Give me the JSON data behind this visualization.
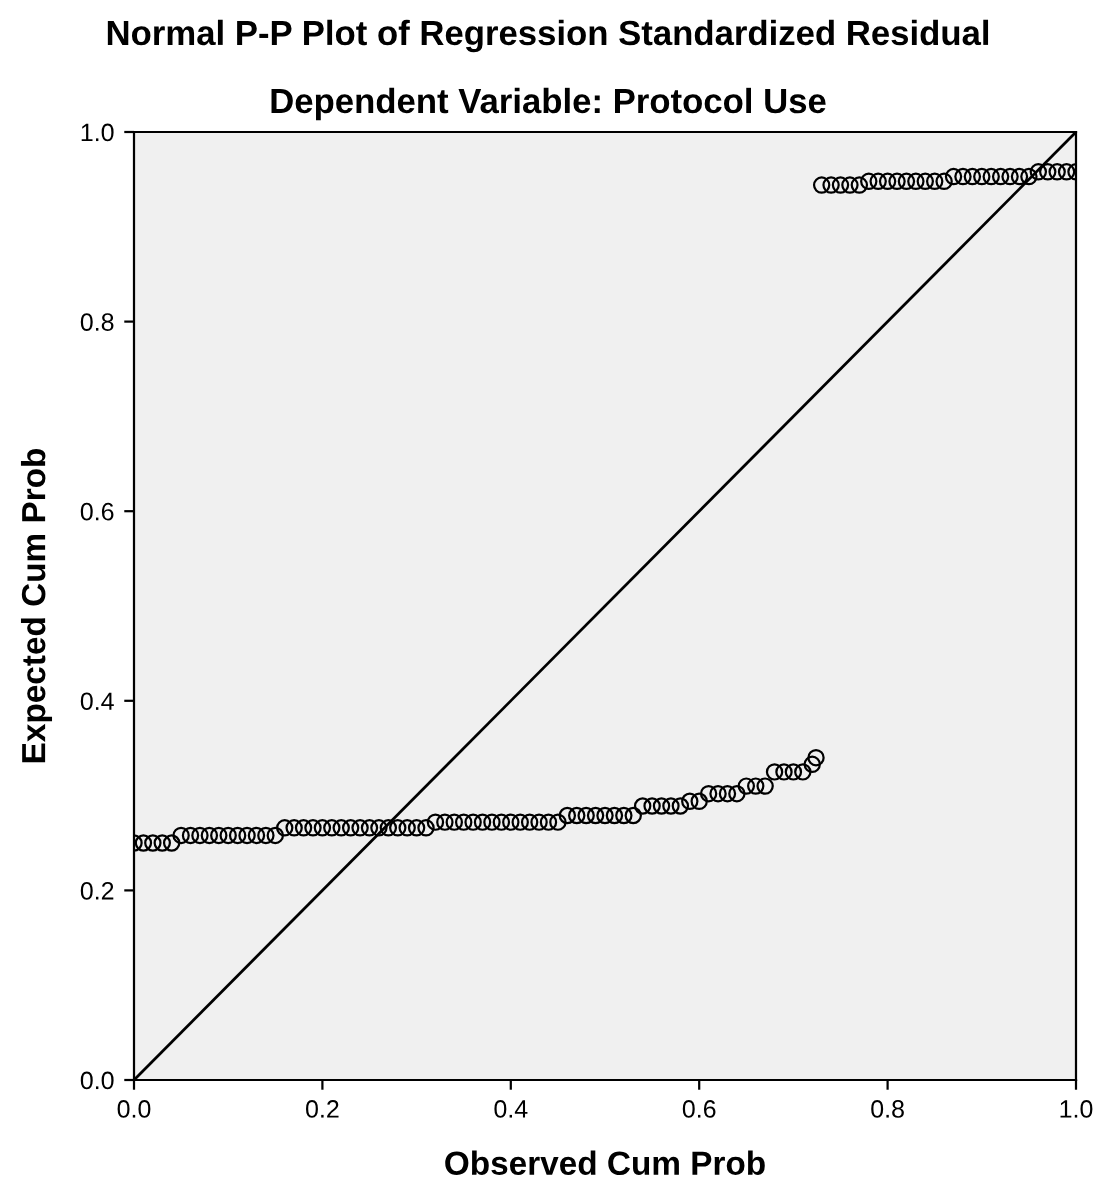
{
  "chart_data": {
    "type": "scatter",
    "title": "Normal P-P Plot of Regression Standardized Residual",
    "subtitle": "Dependent Variable: Protocol Use",
    "xlabel": "Observed Cum Prob",
    "ylabel": "Expected Cum Prob",
    "xlim": [
      0,
      1
    ],
    "ylim": [
      0,
      1
    ],
    "xticks": [
      {
        "value": 0,
        "label": "0.0"
      },
      {
        "value": 0.2,
        "label": "0.2"
      },
      {
        "value": 0.4,
        "label": "0.4"
      },
      {
        "value": 0.6,
        "label": "0.6"
      },
      {
        "value": 0.8,
        "label": "0.8"
      },
      {
        "value": 1,
        "label": "1.0"
      }
    ],
    "yticks": [
      {
        "value": 0,
        "label": "0.0"
      },
      {
        "value": 0.2,
        "label": "0.2"
      },
      {
        "value": 0.4,
        "label": "0.4"
      },
      {
        "value": 0.6,
        "label": "0.6"
      },
      {
        "value": 0.8,
        "label": "0.8"
      },
      {
        "value": 1,
        "label": "1.0"
      }
    ],
    "grid": false,
    "marker": "circle",
    "series": [
      {
        "color": "#000000",
        "x": [
          0,
          0.01,
          0.02,
          0.03,
          0.04,
          0.05,
          0.06,
          0.07,
          0.08,
          0.09,
          0.1,
          0.11,
          0.12,
          0.13,
          0.14,
          0.15,
          0.16,
          0.17,
          0.18,
          0.19,
          0.2,
          0.21,
          0.22,
          0.23,
          0.24,
          0.25,
          0.26,
          0.27,
          0.28,
          0.29,
          0.3,
          0.31,
          0.32,
          0.33,
          0.34,
          0.35,
          0.36,
          0.37,
          0.38,
          0.39,
          0.4,
          0.41,
          0.42,
          0.43,
          0.44,
          0.45,
          0.46,
          0.47,
          0.48,
          0.49,
          0.5,
          0.51,
          0.52,
          0.53,
          0.54,
          0.55,
          0.56,
          0.57,
          0.58,
          0.59,
          0.6,
          0.61,
          0.62,
          0.63,
          0.64,
          0.65,
          0.66,
          0.67,
          0.68,
          0.69,
          0.7,
          0.71,
          0.72,
          0.724,
          0.73,
          0.74,
          0.75,
          0.76,
          0.77,
          0.78,
          0.79,
          0.8,
          0.81,
          0.82,
          0.83,
          0.84,
          0.85,
          0.86,
          0.87,
          0.88,
          0.89,
          0.9,
          0.91,
          0.92,
          0.93,
          0.94,
          0.95,
          0.96,
          0.97,
          0.98,
          0.99,
          1.0
        ],
        "values": [
          0.25,
          0.25,
          0.25,
          0.25,
          0.25,
          0.258,
          0.258,
          0.258,
          0.258,
          0.258,
          0.258,
          0.258,
          0.258,
          0.258,
          0.258,
          0.258,
          0.266,
          0.266,
          0.266,
          0.266,
          0.266,
          0.266,
          0.266,
          0.266,
          0.266,
          0.266,
          0.266,
          0.266,
          0.266,
          0.266,
          0.266,
          0.266,
          0.272,
          0.272,
          0.272,
          0.272,
          0.272,
          0.272,
          0.272,
          0.272,
          0.272,
          0.272,
          0.272,
          0.272,
          0.272,
          0.272,
          0.279,
          0.279,
          0.279,
          0.279,
          0.279,
          0.279,
          0.279,
          0.279,
          0.289,
          0.289,
          0.289,
          0.289,
          0.289,
          0.294,
          0.294,
          0.302,
          0.302,
          0.302,
          0.302,
          0.31,
          0.31,
          0.31,
          0.325,
          0.325,
          0.325,
          0.325,
          0.333,
          0.34,
          0.944,
          0.944,
          0.944,
          0.944,
          0.944,
          0.948,
          0.948,
          0.948,
          0.948,
          0.948,
          0.948,
          0.948,
          0.948,
          0.948,
          0.953,
          0.953,
          0.953,
          0.953,
          0.953,
          0.953,
          0.953,
          0.953,
          0.953,
          0.958,
          0.958,
          0.958,
          0.958,
          0.958
        ]
      },
      {
        "type": "line",
        "color": "#000000",
        "marker": "none",
        "x": [
          0,
          1
        ],
        "values": [
          0,
          1
        ]
      }
    ]
  }
}
